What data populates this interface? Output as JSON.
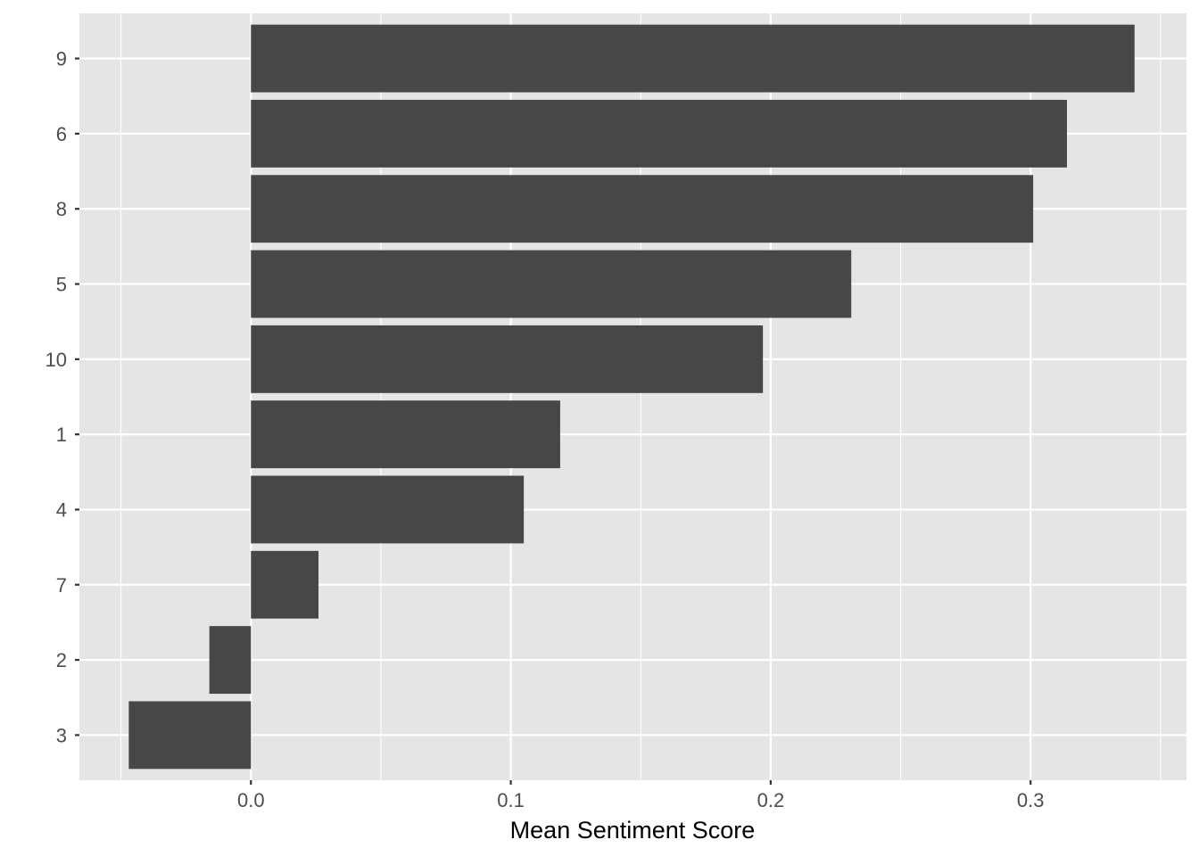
{
  "chart_data": {
    "type": "bar",
    "orientation": "horizontal",
    "title": "",
    "xlabel": "Mean Sentiment Score",
    "ylabel": "",
    "categories": [
      "9",
      "6",
      "8",
      "5",
      "10",
      "1",
      "4",
      "7",
      "2",
      "3"
    ],
    "values": [
      0.34,
      0.314,
      0.301,
      0.231,
      0.197,
      0.119,
      0.105,
      0.026,
      -0.016,
      -0.047
    ],
    "xlim": [
      -0.066,
      0.36
    ],
    "x_ticks": [
      0.0,
      0.1,
      0.2,
      0.3
    ],
    "x_tick_labels": [
      "0.0",
      "0.1",
      "0.2",
      "0.3"
    ],
    "x_minor_ticks": [
      -0.05,
      0.05,
      0.15,
      0.25,
      0.35
    ],
    "grid": true,
    "legend": "none",
    "colors": {
      "bar": "#474747",
      "panel": "#e5e5e5",
      "grid": "#ffffff",
      "text": "#4d4d4d",
      "title_text": "#000000"
    }
  }
}
